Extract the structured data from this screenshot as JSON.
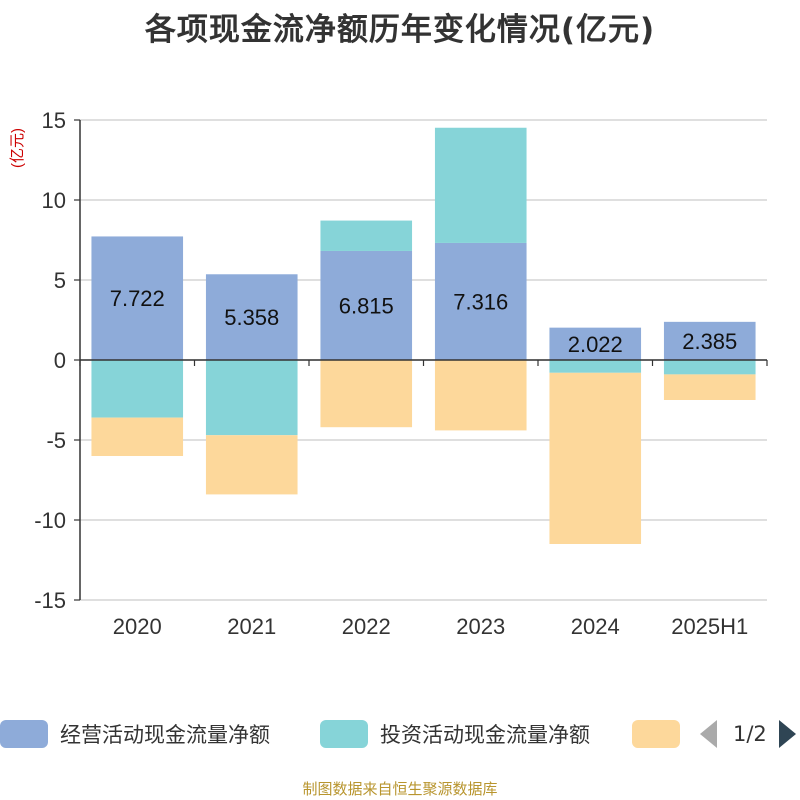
{
  "chart_data": {
    "type": "bar",
    "stacked": true,
    "title": "各项现金流净额历年变化情况(亿元)",
    "ylabel": "(亿元)",
    "ylim": [
      -15,
      15
    ],
    "yticks": [
      15,
      10,
      5,
      0,
      -5,
      -10,
      -15
    ],
    "grid": true,
    "categories": [
      "2020",
      "2021",
      "2022",
      "2023",
      "2024",
      "2025H1"
    ],
    "series": [
      {
        "name": "经营活动现金流量净额",
        "color": "#8eabd9",
        "values": [
          7.722,
          5.358,
          6.815,
          7.316,
          2.022,
          2.385
        ],
        "labels": [
          "7.722",
          "5.358",
          "6.815",
          "7.316",
          "2.022",
          "2.385"
        ]
      },
      {
        "name": "投资活动现金流量净额",
        "color": "#86d4d8",
        "values": [
          -3.6,
          -4.7,
          1.9,
          7.2,
          -0.8,
          -0.9
        ]
      },
      {
        "name": "",
        "color": "#fdd89b",
        "values": [
          -2.4,
          -3.7,
          -4.2,
          -4.4,
          -10.7,
          -1.6
        ]
      }
    ],
    "legend_position": "bottom",
    "legend_page": "1/2"
  },
  "source_note": "制图数据来自恒生聚源数据库"
}
